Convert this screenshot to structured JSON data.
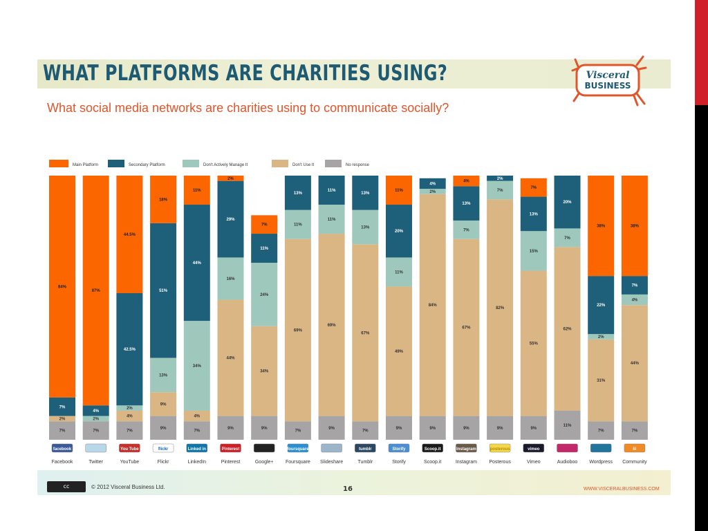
{
  "header": {
    "title": "WHAT PLATFORMS ARE CHARITIES USING?",
    "subtitle": "What social media networks are charities using to communicate socially?"
  },
  "logo": {
    "line1": "Visceral",
    "line2": "BUSINESS"
  },
  "footer": {
    "cc_badge": "cc",
    "copyright": "© 2012 Visceral Business Ltd.",
    "page_number": "16",
    "website": "WWW.VISCERALBUSINESS.COM"
  },
  "colors": {
    "main_platform": "#fb6600",
    "secondary_platform": "#1e5f79",
    "dont_actively_manage": "#9fc8bd",
    "dont_use": "#dbb685",
    "no_response": "#a6a4a4",
    "title": "#1e5a72",
    "subtitle": "#e0552a"
  },
  "chart_data": {
    "type": "bar",
    "stacked": true,
    "legend_position": "top-left",
    "grid": false,
    "ylim": [
      0,
      100
    ],
    "categories": [
      "Facebook",
      "Twitter",
      "YouTube",
      "Flickr",
      "LinkedIn",
      "Pinterest",
      "Google+",
      "Foursquare",
      "Slideshare",
      "Tumblr",
      "Storify",
      "Scoop.it",
      "Instagram",
      "Posterous",
      "Vimeo",
      "Audioboo",
      "Wordpress",
      "Community"
    ],
    "series": [
      {
        "name": "Main Platform",
        "values": [
          84,
          87,
          44.5,
          18,
          11,
          2,
          7,
          0,
          0,
          0,
          11,
          0,
          4,
          0,
          7,
          0,
          38,
          38
        ]
      },
      {
        "name": "Secondary Platform",
        "values": [
          7,
          4,
          42.5,
          51,
          44,
          29,
          11,
          13,
          11,
          13,
          20,
          4,
          13,
          2,
          13,
          20,
          22,
          7
        ]
      },
      {
        "name": "Don't Actively Manage It",
        "values": [
          0,
          2,
          2,
          13,
          34,
          16,
          24,
          11,
          11,
          13,
          11,
          2,
          7,
          7,
          15,
          7,
          2,
          4
        ]
      },
      {
        "name": "Don't Use It",
        "values": [
          2,
          0,
          4,
          9,
          4,
          44,
          34,
          69,
          69,
          67,
          49,
          84,
          67,
          82,
          55,
          62,
          31,
          44
        ]
      },
      {
        "name": "No response",
        "values": [
          7,
          7,
          7,
          9,
          7,
          9,
          9,
          7,
          9,
          7,
          9,
          9,
          9,
          9,
          9,
          11,
          7,
          7
        ]
      }
    ],
    "icon_labels": [
      "facebook",
      "",
      "You Tube",
      "flickr",
      "Linked in",
      "Pinterest",
      "",
      "foursquare",
      "",
      "tumblr",
      "Storify",
      "Scoop.it",
      "Instagram",
      "posterous",
      "vimeo",
      "",
      "",
      "iii"
    ],
    "icon_colors": [
      "#3b5998",
      "#b8d8ea",
      "#c4302b",
      "#ffffff",
      "#0e76a8",
      "#cb2027",
      "#222222",
      "#2b8fd0",
      "#9cb5c8",
      "#2c4762",
      "#4b8ed3",
      "#1a1a1a",
      "#6a5a4a",
      "#f2d84a",
      "#1a1a2a",
      "#c2286a",
      "#21759b",
      "#f08a24"
    ],
    "icon_text_colors": [
      "#ffffff",
      "#ffffff",
      "#ffffff",
      "#0063dc",
      "#ffffff",
      "#ffffff",
      "#ffffff",
      "#ffffff",
      "#ffffff",
      "#ffffff",
      "#ffffff",
      "#ffffff",
      "#ffffff",
      "#b88a00",
      "#ffffff",
      "#ffffff",
      "#ffffff",
      "#ffffff"
    ]
  }
}
